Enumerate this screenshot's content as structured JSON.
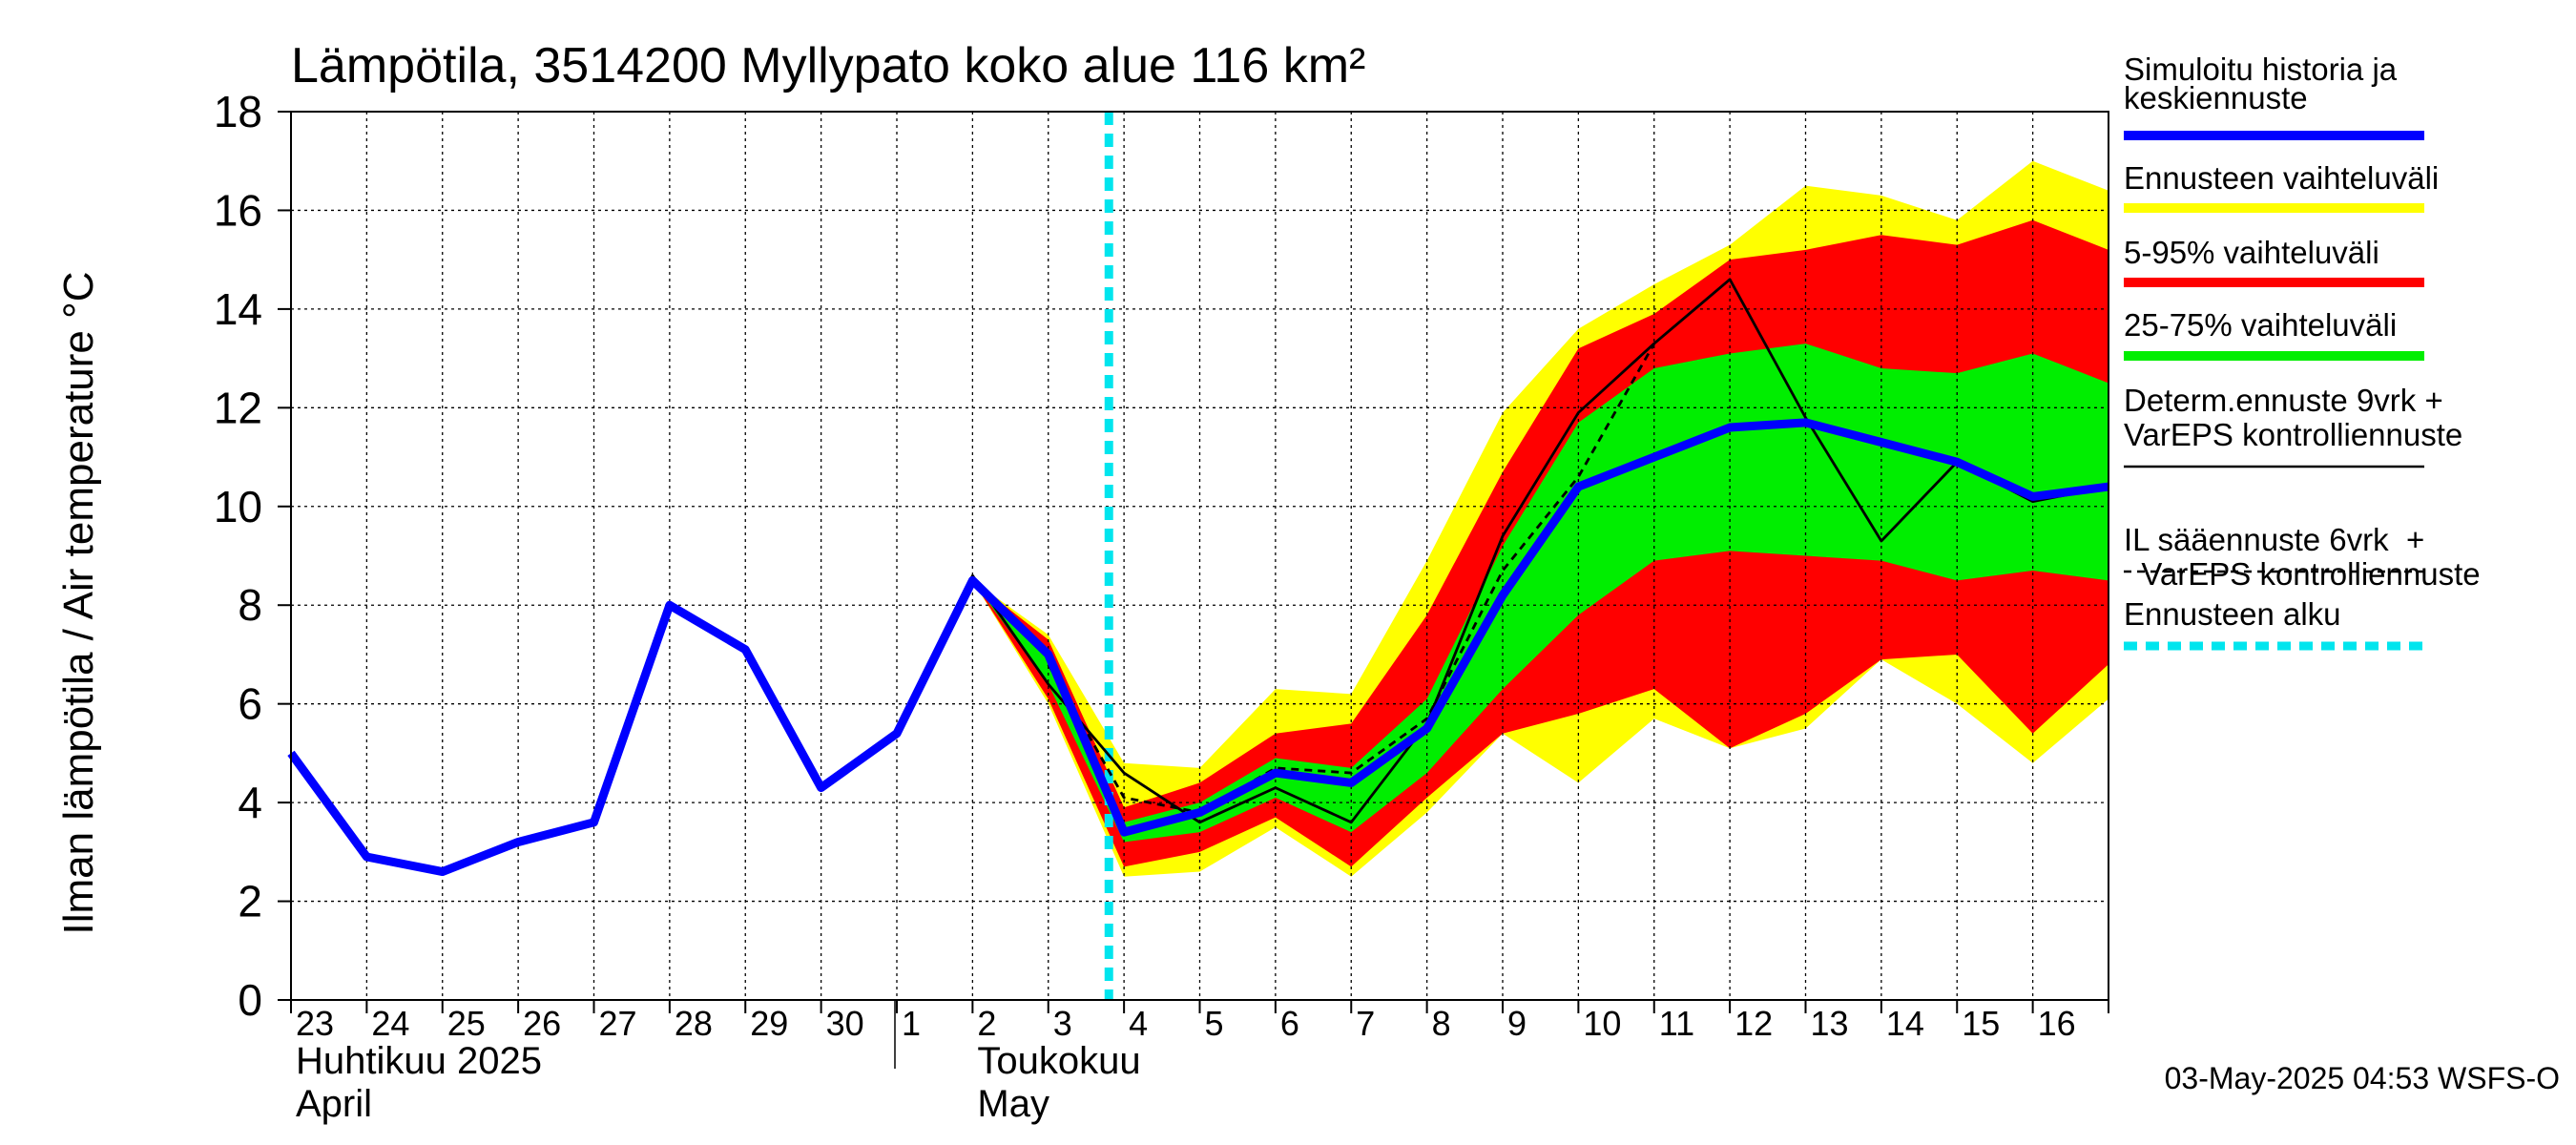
{
  "chart_data": {
    "type": "area",
    "title": "Lämpötila, 3514200 Myllypato koko alue 116 km²",
    "ylabel": "Ilman lämpötila / Air temperature    °C",
    "ylim": [
      0,
      18
    ],
    "yticks": [
      "0",
      "2",
      "4",
      "6",
      "8",
      "10",
      "12",
      "14",
      "16",
      "18"
    ],
    "ytick_values": [
      0,
      2,
      4,
      6,
      8,
      10,
      12,
      14,
      16,
      18
    ],
    "xlim": [
      0,
      24
    ],
    "x_tick_labels": [
      "23",
      "24",
      "25",
      "26",
      "27",
      "28",
      "29",
      "30",
      "1",
      "2",
      "3",
      "4",
      "5",
      "6",
      "7",
      "8",
      "9",
      "10",
      "11",
      "12",
      "13",
      "14",
      "15",
      "16"
    ],
    "months": [
      {
        "fi": "Huhtikuu  2025",
        "en": "April",
        "day_index": 0
      },
      {
        "fi": "Toukokuu",
        "en": "May",
        "day_index": 9
      }
    ],
    "month_boundary_index": 8,
    "forecast_start_index": 10.8,
    "grid": true,
    "series": [
      {
        "name": "Simuloitu historia ja keskiennuste",
        "color": "#0000ff",
        "x": [
          0,
          1,
          2,
          3,
          4,
          5,
          6,
          7,
          8,
          9,
          10,
          11,
          12,
          13,
          14,
          15,
          16,
          17,
          18,
          19,
          20,
          21,
          22,
          23,
          24
        ],
        "y": [
          5.0,
          2.9,
          2.6,
          3.2,
          3.6,
          8.0,
          7.1,
          4.3,
          5.4,
          8.5,
          7.0,
          3.4,
          3.8,
          4.6,
          4.4,
          5.5,
          8.2,
          10.4,
          11.0,
          11.6,
          11.7,
          11.3,
          10.9,
          10.2,
          10.4
        ]
      },
      {
        "name": "Determ.ennuste 9vrk + VarEPS kontrolliennuste",
        "color": "#000000",
        "x": [
          8,
          9,
          10,
          11,
          12,
          13,
          14,
          15,
          16,
          17,
          18,
          19,
          20,
          21,
          22,
          23,
          24
        ],
        "y": [
          5.4,
          8.6,
          6.4,
          4.6,
          3.6,
          4.3,
          3.6,
          5.6,
          9.4,
          11.9,
          13.3,
          14.6,
          11.8,
          9.3,
          10.9,
          10.1,
          10.4
        ]
      },
      {
        "name": "IL sääennuste 6vrk + VarEPS kontrolliennuste",
        "color": "#000000",
        "x": [
          10,
          11,
          12,
          13,
          14,
          15,
          16,
          17,
          18
        ],
        "y": [
          6.8,
          4.1,
          3.8,
          4.7,
          4.6,
          5.7,
          8.7,
          10.6,
          13.3
        ]
      }
    ],
    "bands": [
      {
        "name": "Ennusteen vaihteluväli",
        "color": "#ffff00",
        "x": [
          9,
          10,
          11,
          12,
          13,
          14,
          15,
          16,
          17,
          18,
          19,
          20,
          21,
          22,
          23,
          24
        ],
        "upper": [
          8.5,
          7.4,
          4.8,
          4.7,
          6.3,
          6.2,
          8.9,
          11.9,
          13.6,
          14.5,
          15.3,
          16.5,
          16.3,
          15.8,
          17.0,
          16.4
        ],
        "lower": [
          8.5,
          6.0,
          2.5,
          2.6,
          3.5,
          2.5,
          3.8,
          5.4,
          4.4,
          5.7,
          5.1,
          5.5,
          6.9,
          6.0,
          4.8,
          6.1
        ]
      },
      {
        "name": "5-95% vaihteluväli",
        "color": "#ff0000",
        "x": [
          9,
          10,
          11,
          12,
          13,
          14,
          15,
          16,
          17,
          18,
          19,
          20,
          21,
          22,
          23,
          24
        ],
        "upper": [
          8.5,
          7.3,
          3.9,
          4.4,
          5.4,
          5.6,
          7.8,
          10.7,
          13.2,
          13.9,
          15.0,
          15.2,
          15.5,
          15.3,
          15.8,
          15.2
        ],
        "lower": [
          8.5,
          6.1,
          2.7,
          3.0,
          3.7,
          2.7,
          4.1,
          5.4,
          5.8,
          6.3,
          5.1,
          5.8,
          6.9,
          7.0,
          5.4,
          6.8
        ]
      },
      {
        "name": "25-75% vaihteluväli",
        "color": "#00ee00",
        "x": [
          9,
          10,
          11,
          12,
          13,
          14,
          15,
          16,
          17,
          18,
          19,
          20,
          21,
          22,
          23,
          24
        ],
        "upper": [
          8.5,
          7.0,
          3.6,
          4.0,
          4.9,
          4.7,
          6.1,
          9.2,
          11.7,
          12.8,
          13.1,
          13.3,
          12.8,
          12.7,
          13.1,
          12.5
        ],
        "lower": [
          8.5,
          6.4,
          3.2,
          3.4,
          4.1,
          3.4,
          4.6,
          6.3,
          7.8,
          8.9,
          9.1,
          9.0,
          8.9,
          8.5,
          8.7,
          8.5
        ]
      }
    ]
  },
  "legend": [
    {
      "label_lines": [
        "Simuloitu historia ja",
        "keskiennuste"
      ],
      "color": "#0000ff",
      "style": "thick"
    },
    {
      "label_lines": [
        "Ennusteen vaihteluväli"
      ],
      "color": "#ffff00",
      "style": "thick"
    },
    {
      "label_lines": [
        "5-95% vaihteluväli"
      ],
      "color": "#ff0000",
      "style": "thick"
    },
    {
      "label_lines": [
        "25-75% vaihteluväli"
      ],
      "color": "#00ee00",
      "style": "thick"
    },
    {
      "label_lines": [
        "Determ.ennuste 9vrk +",
        "VarEPS kontrolliennuste"
      ],
      "color": "#000000",
      "style": "thin"
    },
    {
      "label_lines": [
        "IL sääennuste 6vrk  +",
        "  VarEPS kontrolliennuste"
      ],
      "color": "#000000",
      "style": "dashed"
    },
    {
      "label_lines": [
        "Ennusteen alku"
      ],
      "color": "#00e5ee",
      "style": "thickdash"
    }
  ],
  "timestamp": "03-May-2025 04:53 WSFS-O",
  "colors": {
    "grid": "#000000",
    "forecast_start": "#00e5ee",
    "frame": "#000000"
  }
}
